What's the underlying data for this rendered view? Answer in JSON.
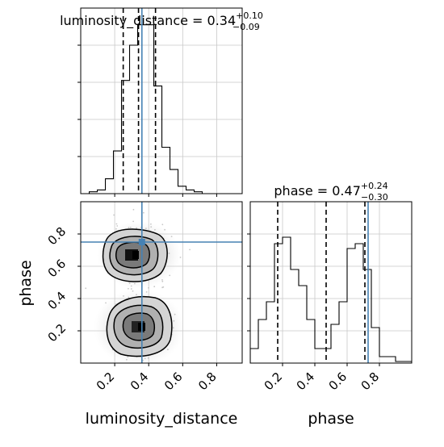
{
  "chart_data": [
    {
      "type": "step-histogram",
      "panel": "luminosity_distance marginal",
      "title": {
        "text": "luminosity_distance = 0.34",
        "sup": "+0.10",
        "sub": "−0.09"
      },
      "xlim": [
        0.0,
        0.95
      ],
      "ylim": [
        0,
        1.0
      ],
      "grid": true,
      "bin_edges": [
        0.05,
        0.0975,
        0.145,
        0.1925,
        0.24,
        0.2875,
        0.335,
        0.3825,
        0.43,
        0.4775,
        0.525,
        0.5725,
        0.62,
        0.6675,
        0.715,
        0.7625
      ],
      "values": [
        0.01,
        0.02,
        0.08,
        0.23,
        0.61,
        0.8,
        0.91,
        0.91,
        0.58,
        0.25,
        0.13,
        0.04,
        0.02,
        0.01,
        0.0
      ],
      "quantile_lines": [
        0.25,
        0.34,
        0.44
      ],
      "truth": 0.36
    },
    {
      "type": "contour",
      "panel": "phase vs luminosity_distance",
      "xlabel": "luminosity_distance",
      "ylabel": "phase",
      "xlim": [
        0.0,
        0.95
      ],
      "ylim": [
        0.0,
        1.0
      ],
      "x_ticks": [
        "0.2",
        "0.4",
        "0.6",
        "0.8"
      ],
      "y_ticks": [
        "0.2",
        "0.4",
        "0.6",
        "0.8"
      ],
      "grid": true,
      "modes": [
        {
          "x": 0.35,
          "y": 0.67
        },
        {
          "x": 0.35,
          "y": 0.22
        }
      ],
      "truth": {
        "x": 0.36,
        "y": 0.75
      }
    },
    {
      "type": "step-histogram",
      "panel": "phase marginal",
      "title": {
        "text": "phase = 0.47",
        "sup": "+0.24",
        "sub": "−0.30"
      },
      "xlabel": "phase",
      "xlim": [
        0.0,
        1.0
      ],
      "ylim": [
        0,
        1.0
      ],
      "grid": true,
      "x_ticks": [
        "0.2",
        "0.4",
        "0.6",
        "0.8"
      ],
      "bin_edges": [
        0.0,
        0.05,
        0.1,
        0.15,
        0.2,
        0.25,
        0.3,
        0.35,
        0.4,
        0.45,
        0.5,
        0.55,
        0.6,
        0.65,
        0.7,
        0.75,
        0.8,
        0.85,
        0.9,
        0.95,
        1.0
      ],
      "values": [
        0.09,
        0.27,
        0.38,
        0.74,
        0.78,
        0.58,
        0.48,
        0.27,
        0.09,
        0.09,
        0.24,
        0.38,
        0.71,
        0.74,
        0.58,
        0.22,
        0.04,
        0.04,
        0.01,
        0.01
      ],
      "quantile_lines": [
        0.17,
        0.47,
        0.71
      ],
      "truth": 0.73
    }
  ],
  "colors": {
    "truth": "#4682b4",
    "hist": "#000000",
    "grid": "#c8c8c8",
    "scatter": "#b0b0b0"
  }
}
